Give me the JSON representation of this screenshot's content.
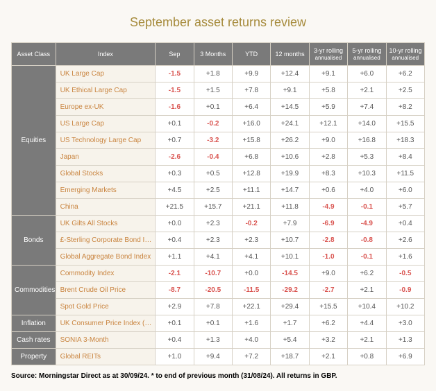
{
  "title": "September asset returns review",
  "columns": [
    "Asset Class",
    "Index",
    "Sep",
    "3 Months",
    "YTD",
    "12 months",
    "3-yr rolling annualised",
    "5-yr rolling annualised",
    "10-yr rolling annualised"
  ],
  "groups": [
    {
      "name": "Equities",
      "rows": [
        {
          "index": "UK Large Cap",
          "vals": [
            "-1.5",
            "+1.8",
            "+9.9",
            "+12.4",
            "+9.1",
            "+6.0",
            "+6.2"
          ]
        },
        {
          "index": "UK Ethical Large Cap",
          "vals": [
            "-1.5",
            "+1.5",
            "+7.8",
            "+9.1",
            "+5.8",
            "+2.1",
            "+2.5"
          ]
        },
        {
          "index": "Europe ex-UK",
          "vals": [
            "-1.6",
            "+0.1",
            "+6.4",
            "+14.5",
            "+5.9",
            "+7.4",
            "+8.2"
          ]
        },
        {
          "index": "US Large Cap",
          "vals": [
            "+0.1",
            "-0.2",
            "+16.0",
            "+24.1",
            "+12.1",
            "+14.0",
            "+15.5"
          ]
        },
        {
          "index": "US Technology Large Cap",
          "vals": [
            "+0.7",
            "-3.2",
            "+15.8",
            "+26.2",
            "+9.0",
            "+16.8",
            "+18.3"
          ]
        },
        {
          "index": "Japan",
          "vals": [
            "-2.6",
            "-0.4",
            "+6.8",
            "+10.6",
            "+2.8",
            "+5.3",
            "+8.4"
          ]
        },
        {
          "index": "Global Stocks",
          "vals": [
            "+0.3",
            "+0.5",
            "+12.8",
            "+19.9",
            "+8.3",
            "+10.3",
            "+11.5"
          ]
        },
        {
          "index": "Emerging Markets",
          "vals": [
            "+4.5",
            "+2.5",
            "+11.1",
            "+14.7",
            "+0.6",
            "+4.0",
            "+6.0"
          ]
        },
        {
          "index": "China",
          "vals": [
            "+21.5",
            "+15.7",
            "+21.1",
            "+11.8",
            "-4.9",
            "-0.1",
            "+5.7"
          ]
        }
      ]
    },
    {
      "name": "Bonds",
      "rows": [
        {
          "index": "UK Gilts All Stocks",
          "vals": [
            "+0.0",
            "+2.3",
            "-0.2",
            "+7.9",
            "-6.9",
            "-4.9",
            "+0.4"
          ]
        },
        {
          "index": "£-Sterling Corporate Bond Index",
          "vals": [
            "+0.4",
            "+2.3",
            "+2.3",
            "+10.7",
            "-2.8",
            "-0.8",
            "+2.6"
          ]
        },
        {
          "index": "Global Aggregate Bond Index",
          "vals": [
            "+1.1",
            "+4.1",
            "+4.1",
            "+10.1",
            "-1.0",
            "-0.1",
            "+1.6"
          ]
        }
      ]
    },
    {
      "name": "Commodities",
      "rows": [
        {
          "index": "Commodity Index",
          "vals": [
            "-2.1",
            "-10.7",
            "+0.0",
            "-14.5",
            "+9.0",
            "+6.2",
            "-0.5"
          ]
        },
        {
          "index": "Brent Crude Oil Price",
          "vals": [
            "-8.7",
            "-20.5",
            "-11.5",
            "-29.2",
            "-2.7",
            "+2.1",
            "-0.9"
          ]
        },
        {
          "index": "Spot Gold Price",
          "vals": [
            "+2.9",
            "+7.8",
            "+22.1",
            "+29.4",
            "+15.5",
            "+10.4",
            "+10.2"
          ]
        }
      ]
    },
    {
      "name": "Inflation",
      "rows": [
        {
          "index": "UK Consumer Price Index (% Chg for period)",
          "vals": [
            "+0.1",
            "+0.1",
            "+1.6",
            "+1.7",
            "+6.2",
            "+4.4",
            "+3.0"
          ]
        }
      ]
    },
    {
      "name": "Cash rates",
      "rows": [
        {
          "index": "SONIA 3-Month",
          "vals": [
            "+0.4",
            "+1.3",
            "+4.0",
            "+5.4",
            "+3.2",
            "+2.1",
            "+1.3"
          ]
        }
      ]
    },
    {
      "name": "Property",
      "rows": [
        {
          "index": "Global REITs",
          "vals": [
            "+1.0",
            "+9.4",
            "+7.2",
            "+18.7",
            "+2.1",
            "+0.8",
            "+6.9"
          ]
        }
      ]
    }
  ],
  "source": "Source: Morningstar Direct as at 30/09/24. * to end of previous month (31/08/24). All returns in GBP.",
  "colors": {
    "title": "#a68b3c",
    "header_bg": "#7a7a7a",
    "header_fg": "#ffffff",
    "index_bg": "#f7f3eb",
    "index_fg": "#c9843f",
    "val_bg": "#ffffff",
    "val_fg": "#555555",
    "neg_fg": "#d9534f",
    "border": "#d6d0c4",
    "page_bg": "#faf8f4"
  }
}
